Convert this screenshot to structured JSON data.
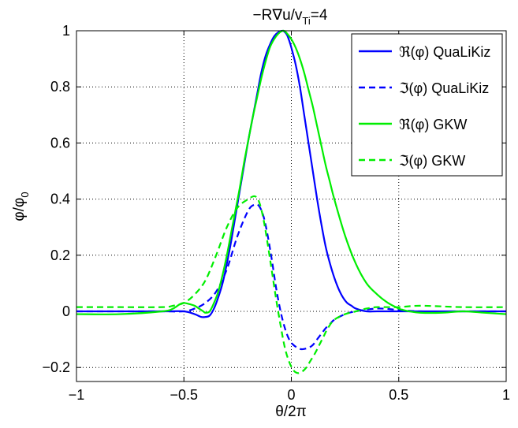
{
  "chart_data": {
    "type": "line",
    "title": {
      "main": "−R∇u/v",
      "sub": "Ti",
      "tail": "=4"
    },
    "xlabel": "θ/2π",
    "ylabel": {
      "main": "φ/φ",
      "sub": "0"
    },
    "xlim": [
      -1,
      1
    ],
    "ylim": [
      -0.25,
      1
    ],
    "grid": true,
    "legend_position": "top-right",
    "x_ticks": [
      -1,
      -0.5,
      0,
      0.5,
      1
    ],
    "x_tick_labels": [
      "−1",
      "−0.5",
      "0",
      "0.5",
      "1"
    ],
    "y_ticks": [
      -0.2,
      0,
      0.2,
      0.4,
      0.6,
      0.8,
      1
    ],
    "y_tick_labels": [
      "−0.2",
      "0",
      "0.2",
      "0.4",
      "0.6",
      "0.8",
      "1"
    ],
    "series": [
      {
        "name": "ℜ(φ) QuaLiKiz",
        "color": "#0000ff",
        "dash": "solid",
        "x": [
          -1,
          -0.8,
          -0.6,
          -0.5,
          -0.45,
          -0.42,
          -0.4,
          -0.38,
          -0.36,
          -0.34,
          -0.32,
          -0.3,
          -0.28,
          -0.26,
          -0.24,
          -0.22,
          -0.2,
          -0.18,
          -0.16,
          -0.14,
          -0.12,
          -0.1,
          -0.08,
          -0.06,
          -0.04,
          -0.03,
          -0.02,
          -0.01,
          0,
          0.02,
          0.04,
          0.06,
          0.08,
          0.1,
          0.12,
          0.14,
          0.16,
          0.18,
          0.2,
          0.22,
          0.24,
          0.26,
          0.28,
          0.3,
          0.35,
          0.4,
          0.5,
          0.6,
          0.8,
          1
        ],
        "y": [
          0.0,
          0.0,
          0.0,
          0.0,
          -0.01,
          -0.02,
          -0.02,
          -0.015,
          0.01,
          0.05,
          0.1,
          0.17,
          0.25,
          0.34,
          0.43,
          0.52,
          0.61,
          0.69,
          0.77,
          0.85,
          0.91,
          0.95,
          0.98,
          0.995,
          1.0,
          0.995,
          0.985,
          0.965,
          0.94,
          0.88,
          0.8,
          0.7,
          0.6,
          0.5,
          0.4,
          0.31,
          0.23,
          0.17,
          0.12,
          0.08,
          0.05,
          0.03,
          0.02,
          0.01,
          0.0,
          0.0,
          0.0,
          0.0,
          0.0,
          0.0
        ]
      },
      {
        "name": "ℑ(φ) QuaLiKiz",
        "color": "#0000ff",
        "dash": "dashed",
        "x": [
          -1,
          -0.8,
          -0.6,
          -0.5,
          -0.45,
          -0.4,
          -0.35,
          -0.3,
          -0.25,
          -0.2,
          -0.17,
          -0.15,
          -0.13,
          -0.11,
          -0.09,
          -0.07,
          -0.05,
          -0.03,
          -0.01,
          0.01,
          0.03,
          0.05,
          0.08,
          0.1,
          0.12,
          0.14,
          0.16,
          0.18,
          0.2,
          0.25,
          0.3,
          0.4,
          0.5,
          0.6,
          0.8,
          1
        ],
        "y": [
          0.0,
          0.0,
          0.0,
          0.0,
          0.01,
          0.03,
          0.07,
          0.15,
          0.27,
          0.36,
          0.38,
          0.375,
          0.34,
          0.27,
          0.18,
          0.08,
          0.0,
          -0.06,
          -0.1,
          -0.12,
          -0.13,
          -0.135,
          -0.13,
          -0.12,
          -0.1,
          -0.08,
          -0.06,
          -0.045,
          -0.03,
          -0.01,
          0.0,
          0.01,
          0.005,
          0.0,
          0.0,
          0.0
        ]
      },
      {
        "name": "ℜ(φ) GKW",
        "color": "#00ee00",
        "dash": "solid",
        "x": [
          -1,
          -0.8,
          -0.6,
          -0.55,
          -0.52,
          -0.5,
          -0.47,
          -0.45,
          -0.43,
          -0.41,
          -0.4,
          -0.38,
          -0.36,
          -0.34,
          -0.32,
          -0.3,
          -0.28,
          -0.26,
          -0.24,
          -0.22,
          -0.2,
          -0.18,
          -0.16,
          -0.14,
          -0.12,
          -0.1,
          -0.08,
          -0.06,
          -0.04,
          -0.03,
          -0.02,
          0,
          0.02,
          0.04,
          0.06,
          0.08,
          0.1,
          0.12,
          0.14,
          0.16,
          0.18,
          0.2,
          0.25,
          0.3,
          0.35,
          0.4,
          0.45,
          0.5,
          0.52,
          0.55,
          0.6,
          0.7,
          0.8,
          0.9,
          1
        ],
        "y": [
          -0.01,
          -0.01,
          0.0,
          0.01,
          0.025,
          0.03,
          0.025,
          0.02,
          0.01,
          0.0,
          -0.005,
          0.0,
          0.03,
          0.07,
          0.13,
          0.2,
          0.28,
          0.36,
          0.44,
          0.53,
          0.61,
          0.69,
          0.76,
          0.83,
          0.89,
          0.94,
          0.97,
          0.99,
          1.0,
          0.998,
          0.99,
          0.97,
          0.94,
          0.9,
          0.85,
          0.79,
          0.73,
          0.66,
          0.59,
          0.52,
          0.46,
          0.4,
          0.27,
          0.17,
          0.1,
          0.06,
          0.03,
          0.01,
          0.005,
          0.0,
          -0.005,
          -0.005,
          0.0,
          -0.005,
          -0.01
        ]
      },
      {
        "name": "ℑ(φ) GKW",
        "color": "#00ee00",
        "dash": "dashed",
        "x": [
          -1,
          -0.8,
          -0.6,
          -0.55,
          -0.5,
          -0.45,
          -0.4,
          -0.35,
          -0.3,
          -0.25,
          -0.2,
          -0.17,
          -0.15,
          -0.13,
          -0.11,
          -0.09,
          -0.07,
          -0.05,
          -0.03,
          -0.01,
          0.01,
          0.03,
          0.05,
          0.07,
          0.09,
          0.11,
          0.13,
          0.15,
          0.17,
          0.2,
          0.25,
          0.3,
          0.35,
          0.4,
          0.5,
          0.6,
          0.8,
          1
        ],
        "y": [
          0.015,
          0.015,
          0.015,
          0.02,
          0.03,
          0.06,
          0.11,
          0.2,
          0.3,
          0.37,
          0.4,
          0.41,
          0.39,
          0.33,
          0.24,
          0.14,
          0.04,
          -0.05,
          -0.13,
          -0.18,
          -0.21,
          -0.22,
          -0.215,
          -0.2,
          -0.175,
          -0.15,
          -0.12,
          -0.09,
          -0.06,
          -0.03,
          -0.01,
          0.0,
          0.01,
          0.015,
          0.015,
          0.02,
          0.015,
          0.015
        ]
      }
    ]
  }
}
